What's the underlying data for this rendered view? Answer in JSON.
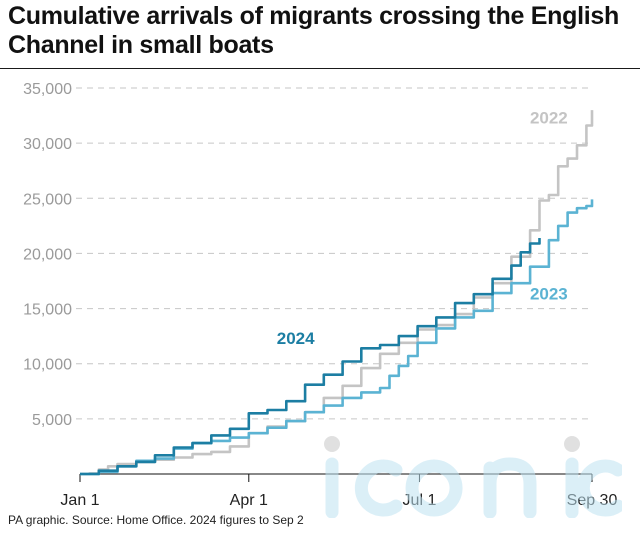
{
  "title": "Cumulative arrivals of migrants crossing the English Channel in small boats",
  "source": "PA graphic. Source: Home Office. 2024 figures to Sep 2",
  "watermark": "iconic",
  "chart_data": {
    "type": "line",
    "title": "Cumulative arrivals of migrants crossing the English Channel in small boats",
    "xlabel": "",
    "ylabel": "",
    "xlim": [
      0,
      273
    ],
    "ylim": [
      0,
      35000
    ],
    "grid": true,
    "y_ticks": [
      {
        "value": 5000,
        "label": "5,000"
      },
      {
        "value": 10000,
        "label": "10,000"
      },
      {
        "value": 15000,
        "label": "15,000"
      },
      {
        "value": 20000,
        "label": "20,000"
      },
      {
        "value": 25000,
        "label": "25,000"
      },
      {
        "value": 30000,
        "label": "30,000"
      },
      {
        "value": 35000,
        "label": "35,000"
      }
    ],
    "x_ticks": [
      {
        "day": 0,
        "label": "Jan 1"
      },
      {
        "day": 90,
        "label": "Apr 1"
      },
      {
        "day": 181,
        "label": "Jul 1"
      },
      {
        "day": 273,
        "label": "Sep 30"
      }
    ],
    "series": [
      {
        "name": "2022",
        "color": "#c4c4c4",
        "label_day": 250,
        "label_value": 31800,
        "points": [
          [
            0,
            0
          ],
          [
            5,
            50
          ],
          [
            10,
            400
          ],
          [
            15,
            700
          ],
          [
            20,
            900
          ],
          [
            30,
            1100
          ],
          [
            40,
            1300
          ],
          [
            50,
            1500
          ],
          [
            60,
            1800
          ],
          [
            70,
            2000
          ],
          [
            80,
            2500
          ],
          [
            90,
            3700
          ],
          [
            100,
            4300
          ],
          [
            110,
            4800
          ],
          [
            120,
            5600
          ],
          [
            130,
            6900
          ],
          [
            140,
            8000
          ],
          [
            150,
            9600
          ],
          [
            160,
            10900
          ],
          [
            170,
            11900
          ],
          [
            180,
            13100
          ],
          [
            190,
            13500
          ],
          [
            200,
            14500
          ],
          [
            210,
            16000
          ],
          [
            220,
            17300
          ],
          [
            230,
            19700
          ],
          [
            240,
            22100
          ],
          [
            245,
            24800
          ],
          [
            250,
            25300
          ],
          [
            255,
            27900
          ],
          [
            260,
            28600
          ],
          [
            265,
            29800
          ],
          [
            270,
            31600
          ],
          [
            273,
            33000
          ]
        ]
      },
      {
        "name": "2023",
        "color": "#5bb3d3",
        "label_day": 250,
        "label_value": 15800,
        "points": [
          [
            0,
            0
          ],
          [
            10,
            200
          ],
          [
            20,
            700
          ],
          [
            30,
            1200
          ],
          [
            40,
            1400
          ],
          [
            50,
            2300
          ],
          [
            60,
            2800
          ],
          [
            70,
            3000
          ],
          [
            80,
            3300
          ],
          [
            90,
            3700
          ],
          [
            100,
            4200
          ],
          [
            110,
            4800
          ],
          [
            120,
            5600
          ],
          [
            130,
            6200
          ],
          [
            140,
            6900
          ],
          [
            150,
            7400
          ],
          [
            160,
            7800
          ],
          [
            165,
            8900
          ],
          [
            170,
            9800
          ],
          [
            175,
            10700
          ],
          [
            180,
            11900
          ],
          [
            190,
            13200
          ],
          [
            200,
            14200
          ],
          [
            210,
            14800
          ],
          [
            220,
            16400
          ],
          [
            230,
            17300
          ],
          [
            240,
            18800
          ],
          [
            250,
            21200
          ],
          [
            255,
            22500
          ],
          [
            260,
            23700
          ],
          [
            265,
            24100
          ],
          [
            270,
            24300
          ],
          [
            273,
            24900
          ]
        ]
      },
      {
        "name": "2024",
        "color": "#1c7ea3",
        "label_day": 115,
        "label_value": 11800,
        "points": [
          [
            0,
            0
          ],
          [
            10,
            300
          ],
          [
            20,
            700
          ],
          [
            30,
            1100
          ],
          [
            40,
            1700
          ],
          [
            50,
            2400
          ],
          [
            60,
            2800
          ],
          [
            70,
            3500
          ],
          [
            80,
            4100
          ],
          [
            90,
            5500
          ],
          [
            100,
            5800
          ],
          [
            110,
            6600
          ],
          [
            120,
            8100
          ],
          [
            130,
            9000
          ],
          [
            140,
            10200
          ],
          [
            150,
            11400
          ],
          [
            160,
            11700
          ],
          [
            170,
            12500
          ],
          [
            180,
            13400
          ],
          [
            190,
            14200
          ],
          [
            200,
            15500
          ],
          [
            210,
            16300
          ],
          [
            220,
            17700
          ],
          [
            230,
            18900
          ],
          [
            235,
            20100
          ],
          [
            240,
            20900
          ],
          [
            245,
            21400
          ]
        ]
      }
    ]
  }
}
